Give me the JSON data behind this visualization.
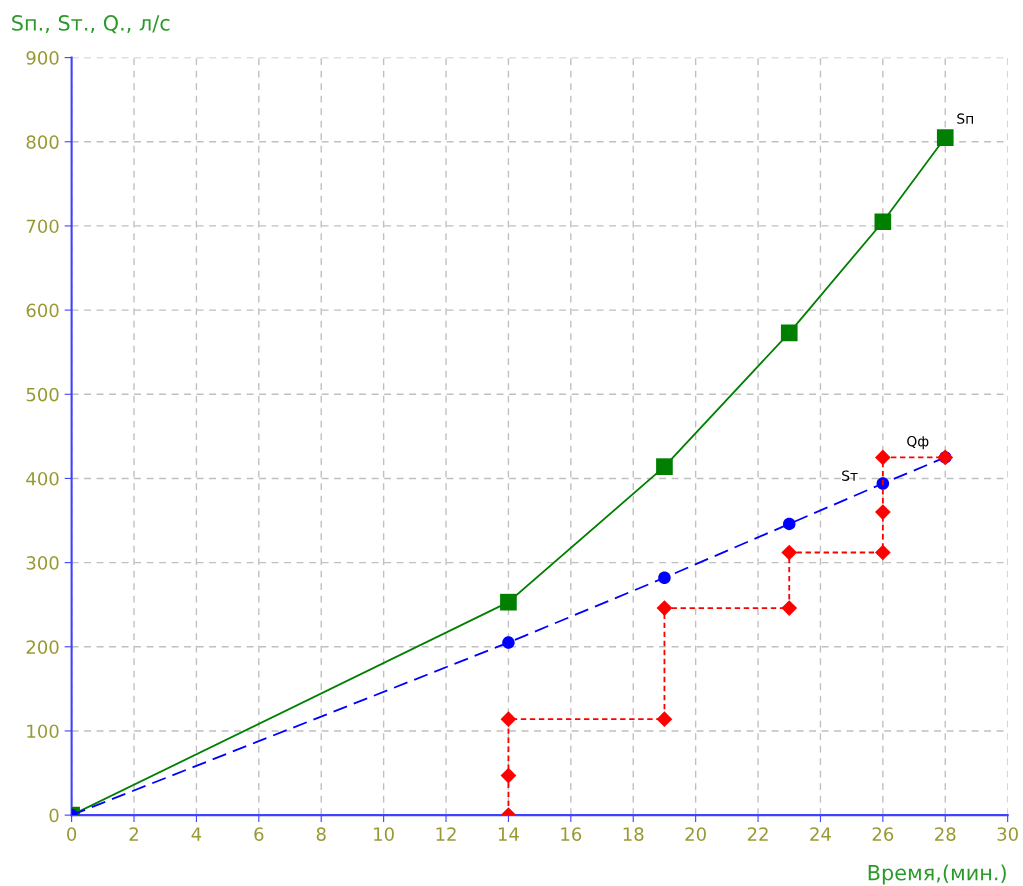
{
  "chart_data": {
    "type": "line",
    "xlabel": "Время,(мин.)",
    "ylabel": "Sп., Sт., Q., л/с",
    "xlim": [
      0,
      30
    ],
    "xticks": [
      0,
      2,
      4,
      6,
      8,
      10,
      12,
      14,
      16,
      18,
      20,
      22,
      24,
      26,
      28,
      30
    ],
    "ylim": [
      0,
      900
    ],
    "yticks": [
      0,
      100,
      200,
      300,
      400,
      500,
      600,
      700,
      800,
      900
    ],
    "grid": true,
    "legend": false,
    "series": [
      {
        "name": "Sп",
        "color": "#007f00",
        "marker": "square",
        "line_style": "solid",
        "x": [
          0,
          14,
          19,
          23,
          26,
          28
        ],
        "values": [
          0,
          253,
          414,
          573,
          705,
          805
        ]
      },
      {
        "name": "Sт",
        "color": "#0000ff",
        "marker": "circle",
        "line_style": "dashed",
        "x": [
          0,
          14,
          19,
          23,
          26,
          28
        ],
        "values": [
          0,
          205,
          282,
          346,
          394,
          425
        ]
      },
      {
        "name": "Qф",
        "color": "#ff0000",
        "marker": "diamond",
        "line_style": "dotted",
        "x": [
          14,
          14,
          14,
          19,
          19,
          23,
          23,
          26,
          26,
          26,
          28
        ],
        "values": [
          0,
          47,
          114,
          114,
          246,
          246,
          312,
          312,
          360,
          425,
          425
        ]
      }
    ]
  }
}
